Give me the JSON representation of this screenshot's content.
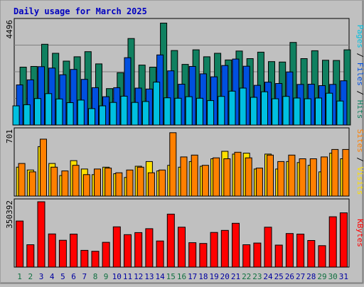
{
  "chart_data": {
    "type": "bar",
    "title": "Daily usage for March 2025",
    "x": {
      "labels": [
        "1",
        "2",
        "3",
        "4",
        "5",
        "6",
        "7",
        "8",
        "9",
        "10",
        "11",
        "12",
        "13",
        "14",
        "15",
        "16",
        "17",
        "18",
        "19",
        "20",
        "21",
        "22",
        "23",
        "24",
        "25",
        "26",
        "27",
        "28",
        "29",
        "30",
        "31"
      ],
      "weekend_days": [
        1,
        2,
        8,
        9,
        15,
        16,
        22,
        23,
        29,
        30
      ],
      "weekday_color": "#0000a0",
      "weekend_color": "#107040"
    },
    "panels": [
      {
        "id": "hits-files-pages",
        "max_label": "4496",
        "ylim": [
          0,
          4496
        ],
        "legend": [
          {
            "text": "Pages",
            "color": "#00c0e0"
          },
          {
            "text": " / ",
            "color": "#000000"
          },
          {
            "text": "Files",
            "color": "#0050e0"
          },
          {
            "text": " / ",
            "color": "#000000"
          },
          {
            "text": "Hits",
            "color": "#108060"
          }
        ],
        "series": [
          {
            "name": "Hits",
            "color": "#108060",
            "values": [
              2510,
              2540,
              3500,
              3110,
              2770,
              2960,
              3180,
              2650,
              1580,
              2270,
              3750,
              2600,
              2510,
              4420,
              3230,
              2630,
              3260,
              2960,
              3110,
              2820,
              3210,
              2880,
              3160,
              2750,
              2730,
              3580,
              2880,
              3220,
              2810,
              2800,
              3260
            ]
          },
          {
            "name": "Files",
            "color": "#0050e0",
            "values": [
              1740,
              1960,
              2530,
              2470,
              2180,
              2410,
              1980,
              1620,
              1230,
              1620,
              2920,
              1600,
              1560,
              3040,
              2350,
              1770,
              2540,
              2220,
              2090,
              2580,
              2860,
              2550,
              1720,
              1860,
              1800,
              2300,
              1760,
              1770,
              1710,
              1760,
              1920
            ]
          },
          {
            "name": "Pages",
            "color": "#00c0e0",
            "values": [
              830,
              880,
              1150,
              1360,
              1130,
              970,
              1080,
              710,
              830,
              980,
              1250,
              980,
              1020,
              1860,
              1180,
              1160,
              1230,
              1160,
              1060,
              1240,
              1470,
              1600,
              1200,
              1440,
              1140,
              1240,
              1170,
              1140,
              1170,
              1380,
              1040
            ]
          }
        ]
      },
      {
        "id": "visits-sites",
        "max_label": "701",
        "ylim": [
          0,
          701
        ],
        "legend": [
          {
            "text": "Sites",
            "color": "#ff8000"
          },
          {
            "text": " / ",
            "color": "#000000"
          },
          {
            "text": "Visits",
            "color": "#ffe000"
          }
        ],
        "series": [
          {
            "name": "Visits",
            "color": "#ffe000",
            "values": [
              310,
              280,
              530,
              350,
              220,
              380,
              290,
              230,
              310,
              240,
              200,
              320,
              370,
              270,
              330,
              310,
              370,
              320,
              400,
              480,
              450,
              460,
              290,
              450,
              290,
              370,
              360,
              330,
              260,
              460,
              400
            ]
          },
          {
            "name": "Sites",
            "color": "#ff8000",
            "values": [
              350,
              260,
              610,
              310,
              270,
              330,
              230,
              290,
              300,
              250,
              280,
              310,
              250,
              280,
              680,
              420,
              440,
              330,
              410,
              400,
              470,
              410,
              300,
              440,
              370,
              440,
              400,
              400,
              420,
              500,
              500
            ]
          }
        ]
      },
      {
        "id": "kbytes",
        "max_label": "350392",
        "ylim": [
          0,
          350392
        ],
        "legend": [
          {
            "text": "KBytes",
            "color": "#ff0000"
          }
        ],
        "series": [
          {
            "name": "KBytes",
            "color": "#ff0000",
            "values": [
              247000,
              120000,
              350392,
              178000,
              144000,
              177000,
              90000,
              85000,
              133000,
              216000,
              174000,
              185000,
              206000,
              140000,
              284000,
              214000,
              131000,
              127000,
              186000,
              197000,
              235000,
              120000,
              129000,
              214000,
              118000,
              180000,
              177000,
              143000,
              115000,
              270000,
              291000
            ]
          }
        ]
      }
    ]
  }
}
